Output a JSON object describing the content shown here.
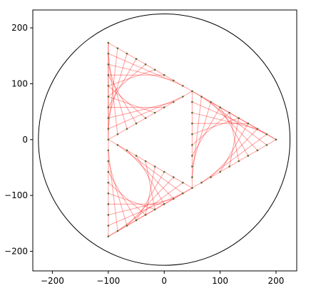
{
  "chart_data": {
    "type": "line",
    "title": "",
    "xlabel": "",
    "ylabel": "",
    "xlim": [
      -235,
      237
    ],
    "ylim": [
      -235,
      232
    ],
    "xticks": [
      -200,
      -100,
      0,
      100,
      200
    ],
    "yticks": [
      -200,
      -100,
      0,
      100,
      200
    ],
    "xtick_labels": [
      "−200",
      "−100",
      "0",
      "100",
      "200"
    ],
    "ytick_labels": [
      "−200",
      "−100",
      "0",
      "100",
      "200"
    ],
    "grid": false,
    "legend": "none",
    "circle": {
      "cx": 0,
      "cy": 0,
      "r": 225,
      "color": "#000000"
    },
    "lines": {
      "color": "#ff0000",
      "opacity": 0.35
    },
    "points": {
      "color": "#556b2f"
    },
    "fractal": {
      "center": [
        0,
        0
      ],
      "radius": 200,
      "steps": 9
    }
  }
}
